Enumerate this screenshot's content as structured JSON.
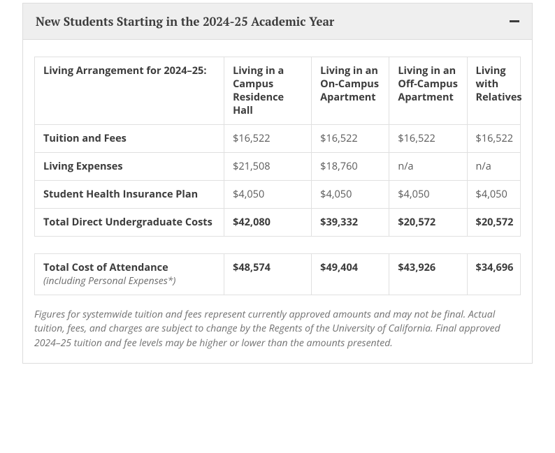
{
  "panel": {
    "title": "New Students Starting in the 2024-25 Academic Year"
  },
  "table1": {
    "headers": [
      "Living Arrangement for 2024–25:",
      "Living in a Campus Residence Hall",
      "Living in an On-Campus Apartment",
      "Living in an Off-Campus Apartment",
      "Living with Relatives"
    ],
    "rows": [
      {
        "label": "Tuition and Fees",
        "c1": "$16,522",
        "c2": "$16,522",
        "c3": "$16,522",
        "c4": "$16,522",
        "bold": false
      },
      {
        "label": "Living Expenses",
        "c1": "$21,508",
        "c2": "$18,760",
        "c3": "n/a",
        "c4": "n/a",
        "bold": false
      },
      {
        "label": "Student Health Insurance Plan",
        "c1": "$4,050",
        "c2": "$4,050",
        "c3": "$4,050",
        "c4": "$4,050",
        "bold": false
      },
      {
        "label": "Total Direct Undergraduate Costs",
        "c1": "$42,080",
        "c2": "$39,332",
        "c3": "$20,572",
        "c4": "$20,572",
        "bold": true
      }
    ]
  },
  "table2": {
    "row": {
      "label": "Total Cost of Attendance",
      "sublabel": "(including Personal Expenses*)",
      "c1": "$48,574",
      "c2": "$49,404",
      "c3": "$43,926",
      "c4": "$34,696"
    }
  },
  "footnote": "Figures for systemwide tuition and fees represent currently approved amounts and may not be final. Actual tuition, fees, and charges are subject to change by the Regents of the University of California. Final approved 2024–25 tuition and fee levels may be higher or lower than the amounts presented."
}
